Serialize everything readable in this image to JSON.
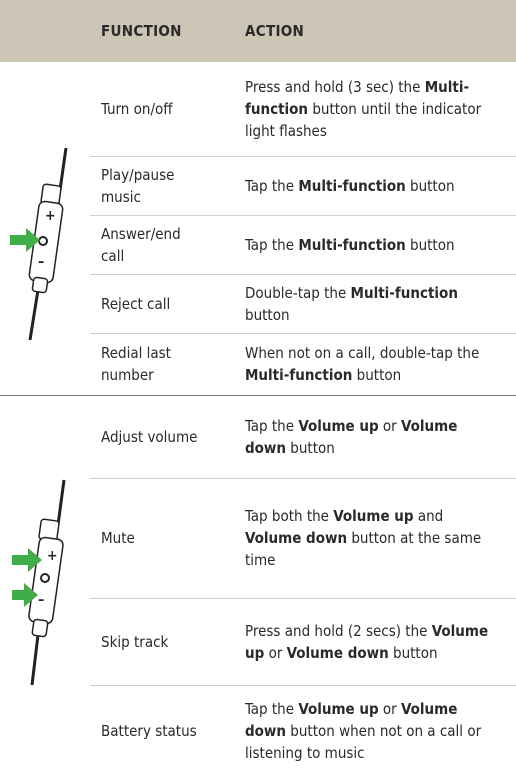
{
  "table": {
    "headers": [
      "FUNCTION",
      "ACTION"
    ],
    "groups": [
      {
        "rows": [
          {
            "function": [
              "Turn on/off"
            ],
            "action": [
              {
                "text": "Press and hold (3 sec) the "
              },
              {
                "text": "Multi-function",
                "bold": true
              },
              {
                "text": " button until the indicator light flashes"
              }
            ]
          },
          {
            "function": [
              "Play/pause",
              "music"
            ],
            "action": [
              {
                "text": "Tap the "
              },
              {
                "text": "Multi-function",
                "bold": true
              },
              {
                "text": " button"
              }
            ]
          },
          {
            "function": [
              "Answer/end",
              "call"
            ],
            "action": [
              {
                "text": "Tap the "
              },
              {
                "text": "Multi-function",
                "bold": true
              },
              {
                "text": " button"
              }
            ]
          },
          {
            "function": [
              "Reject call"
            ],
            "action": [
              {
                "text": "Double-tap the "
              },
              {
                "text": "Multi-function",
                "bold": true
              },
              {
                "text": " button"
              }
            ]
          },
          {
            "function": [
              "Redial last",
              "number"
            ],
            "action": [
              {
                "text": "When not on a call, double-tap the "
              },
              {
                "text": "Multi-function",
                "bold": true
              },
              {
                "text": " button"
              }
            ]
          }
        ]
      },
      {
        "rows": [
          {
            "function": [
              "Adjust volume"
            ],
            "action": [
              {
                "text": "Tap the "
              },
              {
                "text": "Volume up",
                "bold": true
              },
              {
                "text": " or "
              },
              {
                "text": "Volume down",
                "bold": true
              },
              {
                "text": " button"
              }
            ]
          },
          {
            "function": [
              "Mute"
            ],
            "action": [
              {
                "text": "Tap both the "
              },
              {
                "text": "Volume up",
                "bold": true
              },
              {
                "text": " and "
              },
              {
                "text": "Volume down",
                "bold": true
              },
              {
                "text": " button at the same time"
              }
            ]
          },
          {
            "function": [
              "Skip track"
            ],
            "action": [
              {
                "text": "Press and hold (2 secs) the "
              },
              {
                "text": "Volume up",
                "bold": true
              },
              {
                "text": " or "
              },
              {
                "text": "Volume down",
                "bold": true
              },
              {
                "text": " button"
              }
            ]
          },
          {
            "function": [
              "Battery status"
            ],
            "action": [
              {
                "text": "Tap the "
              },
              {
                "text": "Volume up",
                "bold": true
              },
              {
                "text": " or "
              },
              {
                "text": "Volume down",
                "bold": true
              },
              {
                "text": " button when not on a call or listening to music"
              }
            ]
          }
        ]
      }
    ]
  }
}
